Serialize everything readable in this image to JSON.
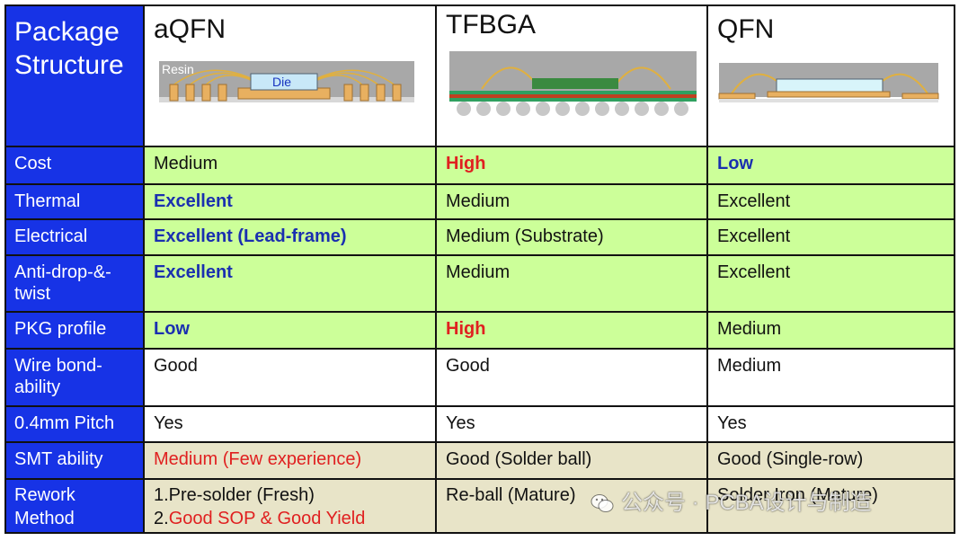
{
  "header": {
    "corner_line1": "Package",
    "corner_line2": "Structure",
    "packages": [
      {
        "name": "aQFN",
        "diagram_labels": [
          "Resin",
          "Die"
        ]
      },
      {
        "name": "TFBGA"
      },
      {
        "name": "QFN"
      }
    ]
  },
  "rows": [
    {
      "label": "Cost",
      "cells": [
        "Medium",
        "High",
        "Low"
      ]
    },
    {
      "label": "Thermal",
      "cells": [
        "Excellent",
        "Medium",
        "Excellent"
      ]
    },
    {
      "label": "Electrical",
      "cells": [
        "Excellent (Lead-frame)",
        "Medium (Substrate)",
        "Excellent"
      ]
    },
    {
      "label": "Anti-drop-&-twist",
      "label_line1": "Anti-drop-&-",
      "label_line2": "twist",
      "cells": [
        "Excellent",
        "Medium",
        "Excellent"
      ]
    },
    {
      "label": "PKG profile",
      "cells": [
        "Low",
        "High",
        "Medium"
      ]
    },
    {
      "label": "Wire bond-ability",
      "label_line1": "Wire bond-",
      "label_line2": "ability",
      "cells": [
        "Good",
        "Good",
        "Medium"
      ]
    },
    {
      "label": "0.4mm Pitch",
      "cells": [
        "Yes",
        "Yes",
        "Yes"
      ]
    },
    {
      "label": "SMT ability",
      "cells": [
        "Medium (Few experience)",
        "Good (Solder ball)",
        "Good (Single-row)"
      ]
    },
    {
      "label": "Rework Method",
      "label_line1": "Rework",
      "label_line2": "Method",
      "cells": [
        "",
        "Re-ball (Mature)",
        "Solder Iron (Mature)"
      ],
      "rework_aqfn": {
        "line1": "1.Pre-solder (Fresh)",
        "line2_num": "2.",
        "line2_text": "Good SOP & Good Yield"
      }
    }
  ],
  "watermark": {
    "text": "公众号 · PCBA设计与制造",
    "icon": "wechat-icon"
  },
  "colors": {
    "row_header": "#1733e6",
    "green": "#ccff99",
    "beige": "#e8e4c8",
    "blue_text": "#1a2fb0",
    "red_text": "#e02020"
  }
}
